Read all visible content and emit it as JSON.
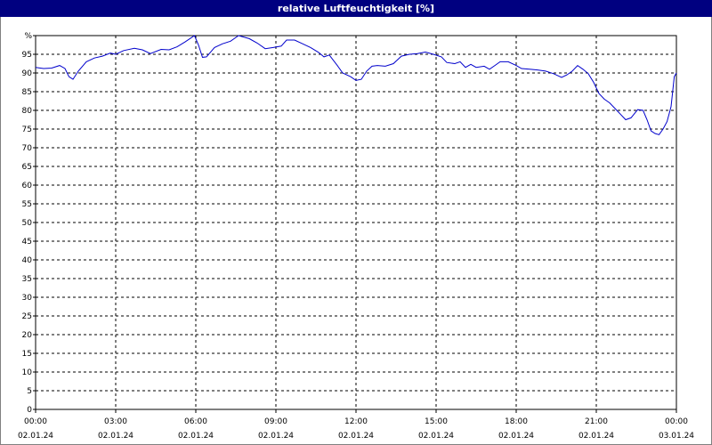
{
  "chart_data": {
    "type": "line",
    "title": "relative Luftfeuchtigkeit [%]",
    "ylim": [
      0,
      100
    ],
    "y_ticks": [
      "0",
      "5",
      "10",
      "15",
      "20",
      "25",
      "30",
      "35",
      "40",
      "45",
      "50",
      "55",
      "60",
      "65",
      "70",
      "75",
      "80",
      "85",
      "90",
      "95",
      "%"
    ],
    "x_range_hours": [
      0,
      24
    ],
    "x_ticks": [
      {
        "time": "00:00",
        "date": "02.01.24"
      },
      {
        "time": "03:00",
        "date": "02.01.24"
      },
      {
        "time": "06:00",
        "date": "02.01.24"
      },
      {
        "time": "09:00",
        "date": "02.01.24"
      },
      {
        "time": "12:00",
        "date": "02.01.24"
      },
      {
        "time": "15:00",
        "date": "02.01.24"
      },
      {
        "time": "18:00",
        "date": "02.01.24"
      },
      {
        "time": "21:00",
        "date": "02.01.24"
      },
      {
        "time": "00:00",
        "date": "03.01.24"
      }
    ],
    "grid": true,
    "colors": {
      "line": "#0000cc",
      "title_bar": "#000080",
      "grid": "#000000"
    },
    "series": [
      {
        "values": [
          [
            0.0,
            91.5
          ],
          [
            0.3,
            91.2
          ],
          [
            0.6,
            91.3
          ],
          [
            0.9,
            92.0
          ],
          [
            1.1,
            91.2
          ],
          [
            1.25,
            89.0
          ],
          [
            1.4,
            88.3
          ],
          [
            1.6,
            90.5
          ],
          [
            1.9,
            93.0
          ],
          [
            2.2,
            94.0
          ],
          [
            2.5,
            94.5
          ],
          [
            2.8,
            95.3
          ],
          [
            3.0,
            95.0
          ],
          [
            3.3,
            96.0
          ],
          [
            3.7,
            96.6
          ],
          [
            4.0,
            96.2
          ],
          [
            4.3,
            95.2
          ],
          [
            4.7,
            96.3
          ],
          [
            5.0,
            96.2
          ],
          [
            5.3,
            97.0
          ],
          [
            5.6,
            98.3
          ],
          [
            5.95,
            100.0
          ],
          [
            6.1,
            97.5
          ],
          [
            6.25,
            94.2
          ],
          [
            6.4,
            94.3
          ],
          [
            6.7,
            96.8
          ],
          [
            7.0,
            97.8
          ],
          [
            7.3,
            98.5
          ],
          [
            7.6,
            100.0
          ],
          [
            8.0,
            99.2
          ],
          [
            8.3,
            98.0
          ],
          [
            8.6,
            96.5
          ],
          [
            8.9,
            96.8
          ],
          [
            9.2,
            97.2
          ],
          [
            9.4,
            98.8
          ],
          [
            9.7,
            98.8
          ],
          [
            10.0,
            97.8
          ],
          [
            10.3,
            96.8
          ],
          [
            10.6,
            95.5
          ],
          [
            10.8,
            94.3
          ],
          [
            11.0,
            94.8
          ],
          [
            11.3,
            92.0
          ],
          [
            11.5,
            90.0
          ],
          [
            11.8,
            89.0
          ],
          [
            12.0,
            88.0
          ],
          [
            12.2,
            88.3
          ],
          [
            12.4,
            90.5
          ],
          [
            12.6,
            91.8
          ],
          [
            12.8,
            92.0
          ],
          [
            13.1,
            91.8
          ],
          [
            13.4,
            92.5
          ],
          [
            13.7,
            94.5
          ],
          [
            14.0,
            95.0
          ],
          [
            14.3,
            95.2
          ],
          [
            14.6,
            95.6
          ],
          [
            14.9,
            95.0
          ],
          [
            15.2,
            94.3
          ],
          [
            15.4,
            92.8
          ],
          [
            15.7,
            92.5
          ],
          [
            15.9,
            93.0
          ],
          [
            16.1,
            91.5
          ],
          [
            16.3,
            92.3
          ],
          [
            16.5,
            91.5
          ],
          [
            16.8,
            91.8
          ],
          [
            17.0,
            91.0
          ],
          [
            17.2,
            92.0
          ],
          [
            17.4,
            93.0
          ],
          [
            17.7,
            93.0
          ],
          [
            18.0,
            92.0
          ],
          [
            18.2,
            91.2
          ],
          [
            18.5,
            91.0
          ],
          [
            18.8,
            90.8
          ],
          [
            19.1,
            90.5
          ],
          [
            19.4,
            89.8
          ],
          [
            19.7,
            88.8
          ],
          [
            19.9,
            89.5
          ],
          [
            20.1,
            90.5
          ],
          [
            20.3,
            92.0
          ],
          [
            20.5,
            91.0
          ],
          [
            20.7,
            89.8
          ],
          [
            20.9,
            87.5
          ],
          [
            21.1,
            84.5
          ],
          [
            21.3,
            83.0
          ],
          [
            21.5,
            82.0
          ],
          [
            21.7,
            80.5
          ],
          [
            21.9,
            79.0
          ],
          [
            22.1,
            77.5
          ],
          [
            22.3,
            78.0
          ],
          [
            22.55,
            80.2
          ],
          [
            22.75,
            80.0
          ],
          [
            22.9,
            77.5
          ],
          [
            23.05,
            74.5
          ],
          [
            23.2,
            73.8
          ],
          [
            23.35,
            73.5
          ],
          [
            23.5,
            75.0
          ],
          [
            23.65,
            77.0
          ],
          [
            23.8,
            81.0
          ],
          [
            23.92,
            89.0
          ],
          [
            24.0,
            90.0
          ]
        ]
      }
    ]
  }
}
